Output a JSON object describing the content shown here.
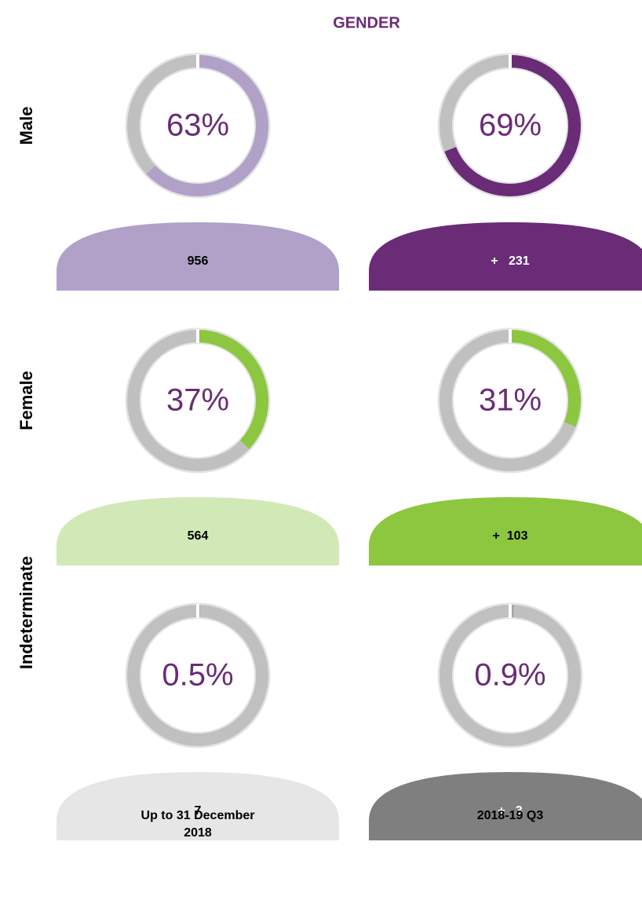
{
  "title": "GENDER",
  "columns": [
    "Up to 31 December 2018",
    "2018-19 Q3"
  ],
  "rows": [
    {
      "label": "Male",
      "cells": [
        {
          "percent": 63,
          "percent_label": "63%",
          "ring_color": "#b1a1c9",
          "count": "956",
          "mound_color": "#b1a1c9",
          "count_color": "#000000"
        },
        {
          "percent": 69,
          "percent_label": "69%",
          "ring_color": "#6a2b77",
          "count": "+   231",
          "mound_color": "#6a2b77",
          "count_color": "#ffffff"
        }
      ]
    },
    {
      "label": "Female",
      "cells": [
        {
          "percent": 37,
          "percent_label": "37%",
          "ring_color": "#8dc63f",
          "count": "564",
          "mound_color": "#d1e9b6",
          "count_color": "#000000"
        },
        {
          "percent": 31,
          "percent_label": "31%",
          "ring_color": "#8dc63f",
          "count": "+  103",
          "mound_color": "#8dc63f",
          "count_color": "#000000"
        }
      ]
    },
    {
      "label": "Indeterminate",
      "cells": [
        {
          "percent": 0.5,
          "percent_label": "0.5%",
          "ring_color": "#a6a6a6",
          "count": "7",
          "mound_color": "#e6e6e6",
          "count_color": "#000000"
        },
        {
          "percent": 0.9,
          "percent_label": "0.9%",
          "ring_color": "#a6a6a6",
          "count": "+   3",
          "mound_color": "#7f7f7f",
          "count_color": "#ffffff"
        }
      ]
    }
  ]
}
